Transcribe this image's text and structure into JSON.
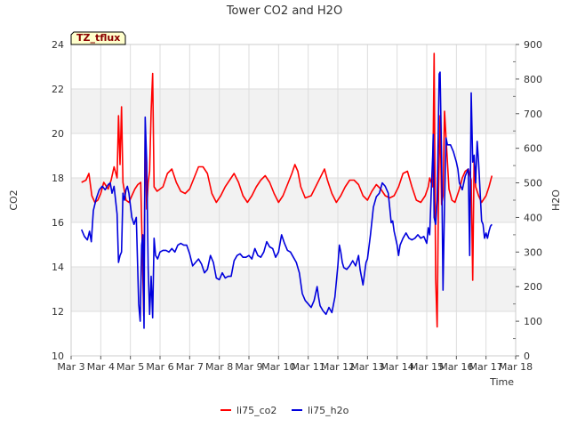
{
  "chart_data": {
    "type": "line",
    "title": "Tower CO2 and H2O",
    "badge": "TZ_tflux",
    "xlabel": "Time",
    "ylabel_left": "CO2",
    "ylabel_right": "H2O",
    "x_range_days": [
      3,
      18
    ],
    "x_ticks": [
      3,
      4,
      5,
      6,
      7,
      8,
      9,
      10,
      11,
      12,
      13,
      14,
      15,
      16,
      17,
      18
    ],
    "x_tick_labels": [
      "Mar 3",
      "Mar 4",
      "Mar 5",
      "Mar 6",
      "Mar 7",
      "Mar 8",
      "Mar 9",
      "Mar 10",
      "Mar 11",
      "Mar 12",
      "Mar 13",
      "Mar 14",
      "Mar 15",
      "Mar 16",
      "Mar 17",
      "Mar 18"
    ],
    "ylim_left": [
      10,
      24
    ],
    "y_ticks_left": [
      10,
      12,
      14,
      16,
      18,
      20,
      22,
      24
    ],
    "ylim_right": [
      0,
      900
    ],
    "y_ticks_right": [
      0,
      100,
      200,
      300,
      400,
      500,
      600,
      700,
      800,
      900
    ],
    "grid": true,
    "legend_position": "bottom-center",
    "series": [
      {
        "name": "li75_co2",
        "axis": "left",
        "color": "#ff0000",
        "points": [
          [
            3.35,
            17.8
          ],
          [
            3.5,
            17.9
          ],
          [
            3.6,
            18.2
          ],
          [
            3.7,
            17.2
          ],
          [
            3.8,
            16.9
          ],
          [
            3.9,
            17.0
          ],
          [
            4.0,
            17.3
          ],
          [
            4.1,
            17.8
          ],
          [
            4.25,
            17.5
          ],
          [
            4.35,
            17.9
          ],
          [
            4.45,
            18.5
          ],
          [
            4.55,
            18.0
          ],
          [
            4.6,
            20.8
          ],
          [
            4.65,
            18.6
          ],
          [
            4.7,
            21.2
          ],
          [
            4.75,
            17.8
          ],
          [
            4.85,
            17.0
          ],
          [
            4.95,
            16.9
          ],
          [
            5.05,
            17.2
          ],
          [
            5.15,
            17.5
          ],
          [
            5.25,
            17.7
          ],
          [
            5.35,
            17.8
          ],
          [
            5.45,
            11.8
          ],
          [
            5.5,
            20.2
          ],
          [
            5.55,
            16.6
          ],
          [
            5.6,
            17.8
          ],
          [
            5.65,
            18.3
          ],
          [
            5.7,
            21.0
          ],
          [
            5.75,
            22.7
          ],
          [
            5.8,
            17.6
          ],
          [
            5.9,
            17.4
          ],
          [
            6.1,
            17.6
          ],
          [
            6.25,
            18.2
          ],
          [
            6.4,
            18.4
          ],
          [
            6.55,
            17.8
          ],
          [
            6.7,
            17.4
          ],
          [
            6.85,
            17.3
          ],
          [
            7.0,
            17.5
          ],
          [
            7.15,
            18.0
          ],
          [
            7.3,
            18.5
          ],
          [
            7.45,
            18.5
          ],
          [
            7.6,
            18.2
          ],
          [
            7.75,
            17.3
          ],
          [
            7.9,
            16.9
          ],
          [
            8.05,
            17.2
          ],
          [
            8.2,
            17.6
          ],
          [
            8.35,
            17.9
          ],
          [
            8.5,
            18.2
          ],
          [
            8.65,
            17.8
          ],
          [
            8.8,
            17.2
          ],
          [
            8.95,
            16.9
          ],
          [
            9.1,
            17.2
          ],
          [
            9.25,
            17.6
          ],
          [
            9.4,
            17.9
          ],
          [
            9.55,
            18.1
          ],
          [
            9.7,
            17.8
          ],
          [
            9.85,
            17.3
          ],
          [
            10.0,
            16.9
          ],
          [
            10.15,
            17.2
          ],
          [
            10.3,
            17.7
          ],
          [
            10.45,
            18.2
          ],
          [
            10.55,
            18.6
          ],
          [
            10.65,
            18.3
          ],
          [
            10.75,
            17.6
          ],
          [
            10.9,
            17.1
          ],
          [
            11.1,
            17.2
          ],
          [
            11.25,
            17.6
          ],
          [
            11.4,
            18.0
          ],
          [
            11.55,
            18.4
          ],
          [
            11.65,
            17.9
          ],
          [
            11.8,
            17.3
          ],
          [
            11.95,
            16.9
          ],
          [
            12.1,
            17.2
          ],
          [
            12.25,
            17.6
          ],
          [
            12.4,
            17.9
          ],
          [
            12.55,
            17.9
          ],
          [
            12.7,
            17.7
          ],
          [
            12.85,
            17.2
          ],
          [
            13.0,
            17.0
          ],
          [
            13.15,
            17.4
          ],
          [
            13.3,
            17.7
          ],
          [
            13.45,
            17.5
          ],
          [
            13.6,
            17.2
          ],
          [
            13.75,
            17.1
          ],
          [
            13.9,
            17.2
          ],
          [
            14.05,
            17.6
          ],
          [
            14.2,
            18.2
          ],
          [
            14.35,
            18.3
          ],
          [
            14.5,
            17.6
          ],
          [
            14.65,
            17.0
          ],
          [
            14.8,
            16.9
          ],
          [
            14.95,
            17.2
          ],
          [
            15.05,
            17.6
          ],
          [
            15.1,
            18.0
          ],
          [
            15.2,
            17.6
          ],
          [
            15.25,
            23.6
          ],
          [
            15.3,
            13.5
          ],
          [
            15.35,
            11.3
          ],
          [
            15.4,
            17.5
          ],
          [
            15.45,
            20.8
          ],
          [
            15.5,
            16.8
          ],
          [
            15.55,
            17.2
          ],
          [
            15.6,
            21.0
          ],
          [
            15.65,
            19.8
          ],
          [
            15.75,
            17.5
          ],
          [
            15.85,
            17.0
          ],
          [
            15.95,
            16.9
          ],
          [
            16.1,
            17.5
          ],
          [
            16.2,
            18.0
          ],
          [
            16.3,
            18.3
          ],
          [
            16.4,
            18.4
          ],
          [
            16.5,
            17.9
          ],
          [
            16.55,
            13.4
          ],
          [
            16.6,
            18.9
          ],
          [
            16.65,
            17.6
          ],
          [
            16.75,
            17.2
          ],
          [
            16.85,
            16.9
          ],
          [
            17.0,
            17.2
          ],
          [
            17.1,
            17.6
          ],
          [
            17.2,
            18.1
          ]
        ]
      },
      {
        "name": "li75_h2o",
        "axis": "right",
        "color": "#0000dd",
        "points": [
          [
            3.35,
            365
          ],
          [
            3.45,
            345
          ],
          [
            3.55,
            335
          ],
          [
            3.62,
            360
          ],
          [
            3.68,
            330
          ],
          [
            3.75,
            420
          ],
          [
            3.85,
            455
          ],
          [
            3.95,
            480
          ],
          [
            4.05,
            490
          ],
          [
            4.15,
            480
          ],
          [
            4.25,
            495
          ],
          [
            4.32,
            500
          ],
          [
            4.38,
            470
          ],
          [
            4.45,
            490
          ],
          [
            4.5,
            450
          ],
          [
            4.55,
            410
          ],
          [
            4.6,
            270
          ],
          [
            4.65,
            290
          ],
          [
            4.7,
            300
          ],
          [
            4.75,
            470
          ],
          [
            4.8,
            450
          ],
          [
            4.85,
            480
          ],
          [
            4.9,
            490
          ],
          [
            4.95,
            470
          ],
          [
            5.05,
            400
          ],
          [
            5.12,
            380
          ],
          [
            5.2,
            400
          ],
          [
            5.28,
            150
          ],
          [
            5.33,
            100
          ],
          [
            5.38,
            320
          ],
          [
            5.42,
            350
          ],
          [
            5.46,
            80
          ],
          [
            5.5,
            690
          ],
          [
            5.55,
            560
          ],
          [
            5.6,
            250
          ],
          [
            5.65,
            120
          ],
          [
            5.7,
            230
          ],
          [
            5.75,
            110
          ],
          [
            5.8,
            340
          ],
          [
            5.85,
            290
          ],
          [
            5.92,
            280
          ],
          [
            6.0,
            300
          ],
          [
            6.1,
            305
          ],
          [
            6.2,
            305
          ],
          [
            6.3,
            300
          ],
          [
            6.4,
            310
          ],
          [
            6.5,
            300
          ],
          [
            6.6,
            320
          ],
          [
            6.7,
            325
          ],
          [
            6.8,
            320
          ],
          [
            6.9,
            320
          ],
          [
            7.0,
            295
          ],
          [
            7.1,
            260
          ],
          [
            7.2,
            270
          ],
          [
            7.3,
            280
          ],
          [
            7.4,
            265
          ],
          [
            7.5,
            240
          ],
          [
            7.6,
            250
          ],
          [
            7.7,
            290
          ],
          [
            7.8,
            270
          ],
          [
            7.9,
            225
          ],
          [
            8.0,
            220
          ],
          [
            8.1,
            240
          ],
          [
            8.2,
            225
          ],
          [
            8.3,
            230
          ],
          [
            8.4,
            230
          ],
          [
            8.5,
            275
          ],
          [
            8.6,
            290
          ],
          [
            8.7,
            295
          ],
          [
            8.8,
            285
          ],
          [
            8.9,
            285
          ],
          [
            9.0,
            290
          ],
          [
            9.1,
            280
          ],
          [
            9.2,
            310
          ],
          [
            9.3,
            290
          ],
          [
            9.4,
            285
          ],
          [
            9.5,
            300
          ],
          [
            9.6,
            330
          ],
          [
            9.7,
            315
          ],
          [
            9.8,
            310
          ],
          [
            9.9,
            285
          ],
          [
            10.0,
            300
          ],
          [
            10.1,
            350
          ],
          [
            10.2,
            325
          ],
          [
            10.3,
            305
          ],
          [
            10.4,
            300
          ],
          [
            10.5,
            285
          ],
          [
            10.6,
            270
          ],
          [
            10.7,
            240
          ],
          [
            10.8,
            180
          ],
          [
            10.9,
            160
          ],
          [
            11.0,
            150
          ],
          [
            11.1,
            140
          ],
          [
            11.2,
            160
          ],
          [
            11.3,
            200
          ],
          [
            11.35,
            170
          ],
          [
            11.4,
            145
          ],
          [
            11.5,
            130
          ],
          [
            11.6,
            120
          ],
          [
            11.7,
            140
          ],
          [
            11.8,
            125
          ],
          [
            11.9,
            170
          ],
          [
            12.0,
            260
          ],
          [
            12.05,
            320
          ],
          [
            12.1,
            300
          ],
          [
            12.15,
            270
          ],
          [
            12.2,
            255
          ],
          [
            12.3,
            250
          ],
          [
            12.4,
            260
          ],
          [
            12.5,
            275
          ],
          [
            12.6,
            260
          ],
          [
            12.7,
            290
          ],
          [
            12.75,
            250
          ],
          [
            12.85,
            205
          ],
          [
            12.95,
            270
          ],
          [
            13.0,
            280
          ],
          [
            13.1,
            350
          ],
          [
            13.2,
            430
          ],
          [
            13.3,
            460
          ],
          [
            13.4,
            470
          ],
          [
            13.5,
            500
          ],
          [
            13.6,
            490
          ],
          [
            13.7,
            470
          ],
          [
            13.75,
            430
          ],
          [
            13.8,
            385
          ],
          [
            13.85,
            390
          ],
          [
            13.9,
            360
          ],
          [
            14.0,
            320
          ],
          [
            14.05,
            290
          ],
          [
            14.1,
            320
          ],
          [
            14.2,
            340
          ],
          [
            14.3,
            355
          ],
          [
            14.4,
            340
          ],
          [
            14.5,
            335
          ],
          [
            14.6,
            340
          ],
          [
            14.7,
            350
          ],
          [
            14.8,
            340
          ],
          [
            14.9,
            345
          ],
          [
            15.0,
            325
          ],
          [
            15.05,
            370
          ],
          [
            15.1,
            350
          ],
          [
            15.15,
            470
          ],
          [
            15.2,
            580
          ],
          [
            15.22,
            640
          ],
          [
            15.25,
            400
          ],
          [
            15.3,
            380
          ],
          [
            15.35,
            450
          ],
          [
            15.4,
            700
          ],
          [
            15.42,
            815
          ],
          [
            15.45,
            820
          ],
          [
            15.5,
            570
          ],
          [
            15.55,
            190
          ],
          [
            15.6,
            440
          ],
          [
            15.65,
            630
          ],
          [
            15.7,
            610
          ],
          [
            15.8,
            610
          ],
          [
            15.9,
            590
          ],
          [
            16.0,
            560
          ],
          [
            16.05,
            540
          ],
          [
            16.1,
            500
          ],
          [
            16.2,
            480
          ],
          [
            16.3,
            520
          ],
          [
            16.4,
            540
          ],
          [
            16.45,
            290
          ],
          [
            16.5,
            760
          ],
          [
            16.55,
            560
          ],
          [
            16.6,
            580
          ],
          [
            16.65,
            500
          ],
          [
            16.7,
            620
          ],
          [
            16.75,
            560
          ],
          [
            16.85,
            390
          ],
          [
            16.9,
            380
          ],
          [
            16.95,
            340
          ],
          [
            17.0,
            355
          ],
          [
            17.05,
            340
          ],
          [
            17.1,
            360
          ],
          [
            17.15,
            375
          ],
          [
            17.2,
            380
          ]
        ]
      }
    ]
  }
}
